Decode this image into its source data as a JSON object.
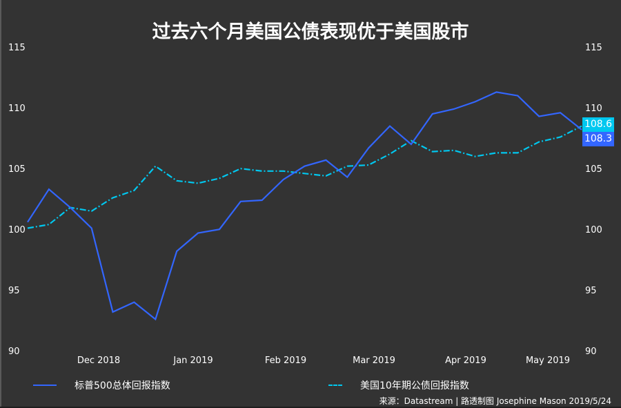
{
  "title": "过去六个月美国公债表现优于美国股市",
  "source": "来源：Datastream | 路透制图 Josephine Mason 2019/5/24",
  "colors": {
    "background": "#333333",
    "sp500": "#3366ff",
    "treasury": "#00c8f0",
    "text": "#ffffff"
  },
  "y_ticks": [
    "115",
    "110",
    "105",
    "100",
    "95",
    "90"
  ],
  "x_ticks": [
    "Dec 2018",
    "Jan 2019",
    "Feb 2019",
    "Mar 2019",
    "Apr 2019",
    "May 2019"
  ],
  "end_labels": {
    "treasury": "108.6",
    "sp500": "108.3"
  },
  "legend": {
    "sp500": "标普500总体回报指数",
    "treasury": "美国10年期公债回报指数"
  },
  "chart_data": {
    "type": "line",
    "title": "过去六个月美国公债表现优于美国股市",
    "xlabel": "",
    "ylabel": "",
    "ylim": [
      90,
      115
    ],
    "yticks": [
      90,
      95,
      100,
      105,
      110,
      115
    ],
    "x_tick_labels": [
      "Dec 2018",
      "Jan 2019",
      "Feb 2019",
      "Mar 2019",
      "Apr 2019",
      "May 2019"
    ],
    "grid": false,
    "legend_position": "bottom",
    "dual_axis_mirrored": true,
    "series": [
      {
        "name": "标普500总体回报指数",
        "style": "solid",
        "color": "#3366ff",
        "values": [
          100.7,
          103.4,
          101.9,
          100.2,
          93.3,
          94.1,
          92.7,
          98.3,
          99.8,
          100.1,
          102.4,
          102.5,
          104.2,
          105.3,
          105.8,
          104.4,
          106.8,
          108.6,
          107.1,
          109.6,
          110.0,
          110.6,
          111.4,
          111.1,
          109.4,
          109.7,
          108.3
        ]
      },
      {
        "name": "美国10年期公债回报指数",
        "style": "dash-dot",
        "color": "#00c8f0",
        "values": [
          100.2,
          100.5,
          101.9,
          101.6,
          102.7,
          103.3,
          105.3,
          104.1,
          103.9,
          104.3,
          105.1,
          104.9,
          104.9,
          104.7,
          104.5,
          105.3,
          105.4,
          106.3,
          107.4,
          106.5,
          106.6,
          106.1,
          106.4,
          106.4,
          107.3,
          107.7,
          108.6
        ]
      }
    ],
    "end_value_labels": {
      "美国10年期公债回报指数": 108.6,
      "标普500总体回报指数": 108.3
    }
  }
}
